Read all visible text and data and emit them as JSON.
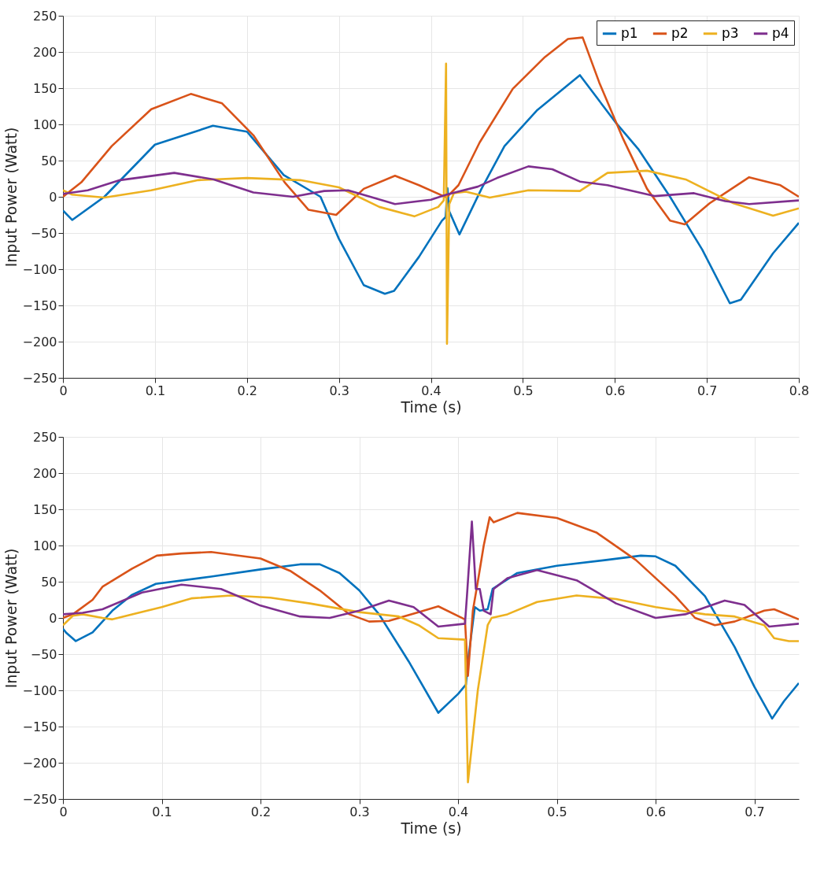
{
  "chart_data": [
    {
      "type": "line",
      "xlabel": "Time (s)",
      "ylabel": "Input Power (Watt)",
      "xlim": [
        0,
        0.8
      ],
      "xticks": [
        0,
        0.1,
        0.2,
        0.3,
        0.4,
        0.5,
        0.6,
        0.7,
        0.8
      ],
      "ylim": [
        -250,
        250
      ],
      "yticks": [
        -250,
        -200,
        -150,
        -100,
        -50,
        0,
        50,
        100,
        150,
        200,
        250
      ],
      "grid": true,
      "legend": "top right",
      "series": [
        {
          "name": "p1",
          "color": "#0072bd",
          "x": [
            0,
            0.01,
            0.045,
            0.1,
            0.163,
            0.2,
            0.24,
            0.28,
            0.3,
            0.327,
            0.35,
            0.36,
            0.387,
            0.412,
            0.416,
            0.418,
            0.42,
            0.431,
            0.455,
            0.48,
            0.515,
            0.562,
            0.6,
            0.626,
            0.66,
            0.695,
            0.725,
            0.737,
            0.772,
            0.8
          ],
          "values": [
            -19,
            -32,
            0,
            72,
            98,
            90,
            30,
            0,
            -58,
            -122,
            -134,
            -130,
            -83,
            -33,
            -28,
            12,
            -20,
            -52,
            11,
            70,
            119,
            168,
            104,
            65,
            0,
            -73,
            -147,
            -142,
            -78,
            -36
          ]
        },
        {
          "name": "p2",
          "color": "#d95319",
          "x": [
            0,
            0.02,
            0.053,
            0.096,
            0.139,
            0.173,
            0.207,
            0.241,
            0.267,
            0.297,
            0.327,
            0.361,
            0.387,
            0.417,
            0.43,
            0.453,
            0.489,
            0.524,
            0.549,
            0.565,
            0.583,
            0.609,
            0.635,
            0.66,
            0.676,
            0.703,
            0.746,
            0.78,
            0.8
          ],
          "values": [
            0,
            20,
            70,
            121,
            142,
            129,
            85,
            20,
            -18,
            -25,
            11,
            29,
            16,
            -1,
            16,
            75,
            149,
            193,
            218,
            220,
            158,
            80,
            11,
            -33,
            -38,
            -9,
            27,
            16,
            0
          ]
        },
        {
          "name": "p3",
          "color": "#edb120",
          "x": [
            0,
            0.01,
            0.045,
            0.096,
            0.147,
            0.2,
            0.258,
            0.3,
            0.344,
            0.382,
            0.408,
            0.414,
            0.4165,
            0.4175,
            0.42,
            0.425,
            0.438,
            0.464,
            0.506,
            0.562,
            0.592,
            0.635,
            0.677,
            0.729,
            0.772,
            0.8
          ],
          "values": [
            9,
            3,
            -1,
            9,
            23,
            26,
            23,
            13,
            -14,
            -27,
            -14,
            -5,
            184,
            -203,
            -10,
            5,
            7,
            -1,
            9,
            8,
            33,
            36,
            24,
            -9,
            -26,
            -16
          ]
        },
        {
          "name": "p4",
          "color": "#7e2f8e",
          "x": [
            0,
            0.027,
            0.062,
            0.121,
            0.164,
            0.207,
            0.25,
            0.284,
            0.31,
            0.361,
            0.4,
            0.417,
            0.451,
            0.472,
            0.506,
            0.532,
            0.562,
            0.592,
            0.643,
            0.686,
            0.72,
            0.746,
            0.8
          ],
          "values": [
            4,
            9,
            23,
            33,
            24,
            6,
            0,
            8,
            9,
            -10,
            -4,
            3,
            14,
            26,
            42,
            38,
            21,
            16,
            1,
            5,
            -6,
            -10,
            -5
          ]
        }
      ]
    },
    {
      "type": "line",
      "xlabel": "Time (s)",
      "ylabel": "Input Power (Watt)",
      "xlim": [
        0,
        0.745
      ],
      "xticks": [
        0,
        0.1,
        0.2,
        0.3,
        0.4,
        0.5,
        0.6,
        0.7
      ],
      "ylim": [
        -250,
        250
      ],
      "yticks": [
        -250,
        -200,
        -150,
        -100,
        -50,
        0,
        50,
        100,
        150,
        200,
        250
      ],
      "grid": true,
      "legend": "top right",
      "series": [
        {
          "name": "p1",
          "color": "#0072bd",
          "x": [
            0,
            0.003,
            0.013,
            0.03,
            0.05,
            0.07,
            0.094,
            0.15,
            0.2,
            0.24,
            0.26,
            0.28,
            0.3,
            0.32,
            0.35,
            0.38,
            0.4,
            0.408,
            0.41,
            0.417,
            0.422,
            0.43,
            0.435,
            0.46,
            0.5,
            0.55,
            0.585,
            0.6,
            0.62,
            0.65,
            0.68,
            0.7,
            0.718,
            0.73,
            0.745
          ],
          "values": [
            -15,
            -20,
            -32,
            -20,
            10,
            32,
            47,
            57,
            67,
            74,
            74,
            62,
            38,
            5,
            -60,
            -131,
            -105,
            -92,
            -60,
            15,
            10,
            12,
            40,
            62,
            72,
            80,
            86,
            85,
            72,
            30,
            -40,
            -95,
            -139,
            -115,
            -90
          ]
        },
        {
          "name": "p2",
          "color": "#d95319",
          "x": [
            0,
            0.01,
            0.03,
            0.04,
            0.07,
            0.095,
            0.12,
            0.15,
            0.2,
            0.23,
            0.26,
            0.29,
            0.31,
            0.33,
            0.36,
            0.38,
            0.407,
            0.41,
            0.415,
            0.42,
            0.426,
            0.432,
            0.436,
            0.46,
            0.5,
            0.54,
            0.58,
            0.62,
            0.64,
            0.66,
            0.68,
            0.71,
            0.72,
            0.745
          ],
          "values": [
            0,
            5,
            25,
            43,
            68,
            86,
            89,
            91,
            82,
            65,
            38,
            5,
            -5,
            -4,
            8,
            16,
            -2,
            -80,
            10,
            50,
            100,
            139,
            132,
            145,
            138,
            118,
            80,
            30,
            0,
            -10,
            -5,
            10,
            12,
            -2
          ]
        },
        {
          "name": "p3",
          "color": "#edb120",
          "x": [
            0,
            0.01,
            0.02,
            0.04,
            0.05,
            0.07,
            0.1,
            0.13,
            0.17,
            0.21,
            0.25,
            0.3,
            0.34,
            0.36,
            0.38,
            0.407,
            0.41,
            0.42,
            0.425,
            0.43,
            0.434,
            0.45,
            0.48,
            0.52,
            0.56,
            0.6,
            0.65,
            0.68,
            0.71,
            0.72,
            0.735,
            0.745
          ],
          "values": [
            -10,
            3,
            5,
            0,
            -2,
            5,
            15,
            27,
            31,
            28,
            20,
            8,
            2,
            -10,
            -28,
            -30,
            -227,
            -100,
            -55,
            -10,
            0,
            5,
            22,
            31,
            26,
            15,
            5,
            2,
            -10,
            -28,
            -32,
            -32
          ]
        },
        {
          "name": "p4",
          "color": "#7e2f8e",
          "x": [
            0,
            0.02,
            0.04,
            0.08,
            0.12,
            0.16,
            0.2,
            0.24,
            0.27,
            0.3,
            0.33,
            0.355,
            0.38,
            0.407,
            0.409,
            0.414,
            0.418,
            0.422,
            0.426,
            0.433,
            0.436,
            0.45,
            0.48,
            0.52,
            0.56,
            0.6,
            0.63,
            0.67,
            0.69,
            0.715,
            0.745
          ],
          "values": [
            5,
            7,
            12,
            35,
            46,
            40,
            17,
            2,
            0,
            10,
            24,
            15,
            -12,
            -8,
            30,
            133,
            40,
            40,
            10,
            5,
            40,
            55,
            66,
            52,
            20,
            0,
            5,
            24,
            18,
            -12,
            -8
          ]
        }
      ]
    }
  ]
}
